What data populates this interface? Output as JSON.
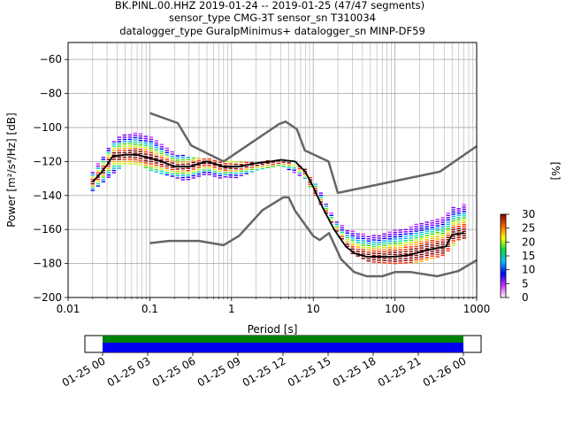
{
  "title_lines": [
    "BK.PINL.00.HHZ   2019-01-24 -- 2019-01-25  (47/47 segments)",
    "sensor_type CMG-3T sensor_sn T310034",
    "datalogger_type GuralpMinimus+ datalogger_sn MINP-DF59"
  ],
  "chart_data": {
    "type": "heatmap",
    "xlabel": "Period [s]",
    "ylabel": "Power [m²/s⁴/Hz] [dB]",
    "x_scale": "log",
    "xlim": [
      0.01,
      1000
    ],
    "ylim": [
      -200,
      -50
    ],
    "xticks": [
      {
        "value": 0.01,
        "label": "0.01"
      },
      {
        "value": 0.1,
        "label": "0.1"
      },
      {
        "value": 1,
        "label": "1"
      },
      {
        "value": 10,
        "label": "10"
      },
      {
        "value": 100,
        "label": "100"
      },
      {
        "value": 1000,
        "label": "1000"
      }
    ],
    "yticks": [
      -60,
      -80,
      -100,
      -120,
      -140,
      -160,
      -180,
      -200
    ],
    "grid": true,
    "noise_models": [
      {
        "name": "NHNM",
        "color": "#666666",
        "points": [
          [
            0.1,
            -91.5
          ],
          [
            0.22,
            -97.4
          ],
          [
            0.32,
            -110.5
          ],
          [
            0.8,
            -120
          ],
          [
            3.8,
            -98
          ],
          [
            4.6,
            -96.5
          ],
          [
            6.3,
            -101
          ],
          [
            7.9,
            -113.5
          ],
          [
            15.4,
            -120
          ],
          [
            20,
            -138.5
          ],
          [
            354.8,
            -126
          ],
          [
            1000,
            -111
          ]
        ]
      },
      {
        "name": "NLNM",
        "color": "#666666",
        "points": [
          [
            0.1,
            -168
          ],
          [
            0.17,
            -166.7
          ],
          [
            0.4,
            -166.7
          ],
          [
            0.8,
            -169.2
          ],
          [
            1.24,
            -163.7
          ],
          [
            2.4,
            -148.6
          ],
          [
            4.3,
            -141.1
          ],
          [
            5,
            -141.1
          ],
          [
            6,
            -149
          ],
          [
            10,
            -163.8
          ],
          [
            12,
            -166.2
          ],
          [
            15.6,
            -162.1
          ],
          [
            21.9,
            -177.5
          ],
          [
            31.6,
            -185
          ],
          [
            45,
            -187.5
          ],
          [
            70,
            -187.5
          ],
          [
            101,
            -185
          ],
          [
            154,
            -185
          ],
          [
            328,
            -187.5
          ],
          [
            600,
            -184.4
          ],
          [
            1000,
            -178
          ]
        ]
      }
    ],
    "mean_psd": [
      [
        0.02,
        -132
      ],
      [
        0.025,
        -127
      ],
      [
        0.03,
        -122
      ],
      [
        0.035,
        -117
      ],
      [
        0.05,
        -116
      ],
      [
        0.07,
        -116
      ],
      [
        0.1,
        -118
      ],
      [
        0.14,
        -120
      ],
      [
        0.2,
        -123
      ],
      [
        0.3,
        -123
      ],
      [
        0.5,
        -120
      ],
      [
        0.8,
        -123
      ],
      [
        1.2,
        -123
      ],
      [
        2,
        -121
      ],
      [
        3,
        -120
      ],
      [
        4,
        -119
      ],
      [
        6,
        -120
      ],
      [
        8,
        -126
      ],
      [
        10,
        -135
      ],
      [
        13,
        -147
      ],
      [
        18,
        -160
      ],
      [
        25,
        -170
      ],
      [
        32,
        -174
      ],
      [
        45,
        -176
      ],
      [
        70,
        -176
      ],
      [
        100,
        -176
      ],
      [
        150,
        -175
      ],
      [
        250,
        -172
      ],
      [
        420,
        -170
      ],
      [
        500,
        -163
      ],
      [
        700,
        -162
      ]
    ],
    "psd_upper_envelope": [
      [
        0.02,
        -126
      ],
      [
        0.03,
        -113
      ],
      [
        0.05,
        -99
      ],
      [
        0.08,
        -99
      ],
      [
        0.1,
        -102
      ],
      [
        0.15,
        -110
      ],
      [
        0.2,
        -115
      ],
      [
        0.3,
        -117
      ],
      [
        0.5,
        -118
      ],
      [
        1,
        -119
      ],
      [
        2,
        -120
      ],
      [
        4,
        -119
      ],
      [
        8,
        -124
      ],
      [
        12,
        -137
      ],
      [
        20,
        -148
      ],
      [
        30,
        -152
      ],
      [
        45,
        -155
      ],
      [
        60,
        -156
      ],
      [
        100,
        -152
      ],
      [
        200,
        -148
      ],
      [
        300,
        -146
      ],
      [
        400,
        -143
      ],
      [
        600,
        -138
      ],
      [
        700,
        -135
      ]
    ],
    "psd_lower_envelope": [
      [
        0.02,
        -137
      ],
      [
        0.03,
        -130
      ],
      [
        0.05,
        -121
      ],
      [
        0.08,
        -122
      ],
      [
        0.1,
        -125
      ],
      [
        0.2,
        -129
      ],
      [
        0.3,
        -132
      ],
      [
        0.5,
        -133
      ],
      [
        0.8,
        -132
      ],
      [
        1.2,
        -129
      ],
      [
        2,
        -125
      ],
      [
        4,
        -122
      ],
      [
        8,
        -130
      ],
      [
        12,
        -144
      ],
      [
        20,
        -162
      ],
      [
        30,
        -174
      ],
      [
        50,
        -179
      ],
      [
        100,
        -180
      ],
      [
        200,
        -179
      ],
      [
        400,
        -175
      ],
      [
        600,
        -166
      ],
      [
        700,
        -165
      ]
    ],
    "colorbar": {
      "label": "[%]",
      "ticks": [
        0,
        5,
        10,
        15,
        20,
        25,
        30
      ],
      "range": [
        0,
        30
      ],
      "colormap": [
        "#ffffff",
        "#cc33ff",
        "#0000ff",
        "#00c0ff",
        "#00e040",
        "#ffff00",
        "#ff6600",
        "#800000"
      ]
    },
    "coverage_bar": {
      "xticks": [
        "01-25 00",
        "01-25 03",
        "01-25 06",
        "01-25 09",
        "01-25 12",
        "01-25 15",
        "01-25 18",
        "01-25 21",
        "01-26 00"
      ],
      "colors": {
        "data": "#0000ee",
        "psd": "#008000",
        "gap": "#ffffff"
      }
    }
  }
}
